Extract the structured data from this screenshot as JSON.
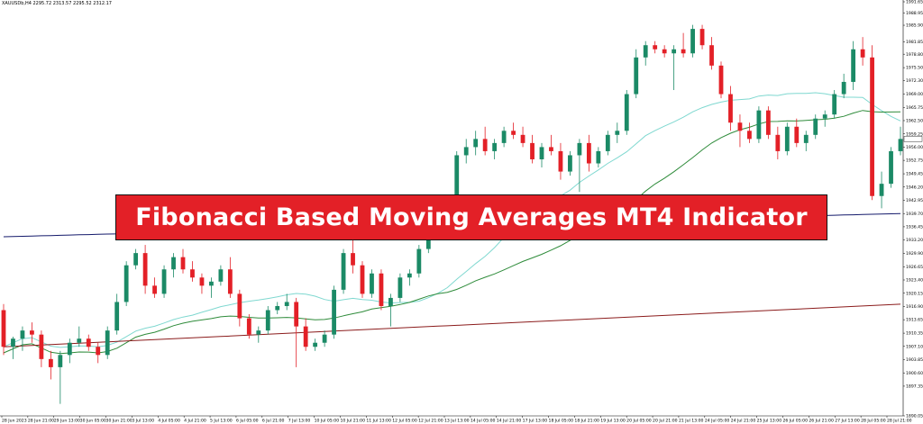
{
  "header": {
    "symbol_info": "XAUUSDb,H4  2295.72 2313.57 2295.52 2312.17"
  },
  "banner": {
    "title": "Fibonacci Based Moving Averages MT4 Indicator",
    "background": "#e32027"
  },
  "colors": {
    "bull_candle": "#1b8a66",
    "bear_candle": "#e32027",
    "ma_teal": "#7fd8d0",
    "ma_green": "#2e8b3a",
    "ma_navy": "#141a6b",
    "ma_maroon": "#8b1c1c"
  },
  "chart_data": {
    "type": "candlestick",
    "price_axis": [
      "1991.65",
      "1988.95",
      "1985.90",
      "1981.85",
      "1978.80",
      "1975.50",
      "1972.30",
      "1969.00",
      "1965.75",
      "1962.50",
      "1959.25",
      "1956.00",
      "1952.75",
      "1949.45",
      "1946.20",
      "1942.95",
      "1939.70",
      "1936.45",
      "1933.20",
      "1929.90",
      "1926.65",
      "1923.40",
      "1920.15",
      "1916.90",
      "1913.65",
      "1910.35",
      "1907.10",
      "1903.85",
      "1900.60",
      "1897.35",
      "1890.05"
    ],
    "time_axis": [
      "28 Jun 2023",
      "28 Jun 21:00",
      "29 Jun 13:00",
      "30 Jun 05:00",
      "30 Jun 21:00",
      "3 Jul 13:00",
      "4 Jul 05:00",
      "4 Jul 21:00",
      "5 Jul 13:00",
      "6 Jul 05:00",
      "6 Jul 21:00",
      "7 Jul 13:00",
      "10 Jul 05:00",
      "10 Jul 21:00",
      "11 Jul 13:00",
      "12 Jul 05:00",
      "12 Jul 21:00",
      "13 Jul 13:00",
      "14 Jul 05:00",
      "14 Jul 21:00",
      "17 Jul 13:00",
      "18 Jul 05:00",
      "18 Jul 21:00",
      "19 Jul 13:00",
      "20 Jul 05:00",
      "20 Jul 21:00",
      "21 Jul 13:00",
      "24 Jul 05:00",
      "24 Jul 21:00",
      "25 Jul 13:00",
      "26 Jul 05:00",
      "26 Jul 21:00",
      "27 Jul 13:00",
      "28 Jul 05:00",
      "28 Jul 21:00"
    ],
    "candles": [
      [
        1916,
        1917.5,
        1905,
        1907
      ],
      [
        1907,
        1909.5,
        1904,
        1909
      ],
      [
        1909,
        1912,
        1906,
        1911
      ],
      [
        1911,
        1913,
        1908,
        1910
      ],
      [
        1910,
        1911,
        1902,
        1904
      ],
      [
        1904,
        1906,
        1899,
        1902
      ],
      [
        1902,
        1906,
        1893,
        1905
      ],
      [
        1905,
        1909,
        1903,
        1908
      ],
      [
        1908,
        1912,
        1907,
        1909
      ],
      [
        1909,
        1910,
        1906,
        1907
      ],
      [
        1907,
        1908,
        1903,
        1905
      ],
      [
        1905,
        1912,
        1904,
        1911
      ],
      [
        1911,
        1920,
        1910,
        1918
      ],
      [
        1918,
        1928,
        1917,
        1927
      ],
      [
        1927,
        1931,
        1926,
        1930
      ],
      [
        1930,
        1932,
        1920,
        1922
      ],
      [
        1922,
        1924,
        1919,
        1920
      ],
      [
        1920,
        1927,
        1919,
        1926
      ],
      [
        1926,
        1930,
        1924,
        1929
      ],
      [
        1929,
        1931,
        1925,
        1926
      ],
      [
        1926,
        1928,
        1923,
        1924
      ],
      [
        1924,
        1925,
        1920,
        1922
      ],
      [
        1922,
        1924,
        1919,
        1923
      ],
      [
        1923,
        1927,
        1922,
        1926
      ],
      [
        1926,
        1929,
        1919,
        1920
      ],
      [
        1920,
        1921,
        1912,
        1914
      ],
      [
        1914,
        1915,
        1909,
        1910
      ],
      [
        1910,
        1912,
        1908,
        1911
      ],
      [
        1911,
        1917,
        1910,
        1916
      ],
      [
        1916,
        1918,
        1915,
        1917
      ],
      [
        1917,
        1920,
        1916,
        1918
      ],
      [
        1918,
        1919,
        1902,
        1912
      ],
      [
        1912,
        1914,
        1906,
        1907
      ],
      [
        1907,
        1909,
        1906,
        1908
      ],
      [
        1908,
        1911,
        1907,
        1910
      ],
      [
        1910,
        1922,
        1909,
        1921
      ],
      [
        1921,
        1931,
        1920,
        1930
      ],
      [
        1930,
        1935,
        1925,
        1927
      ],
      [
        1927,
        1928,
        1919,
        1920
      ],
      [
        1920,
        1926,
        1919,
        1925
      ],
      [
        1925,
        1926,
        1916,
        1917
      ],
      [
        1917,
        1920,
        1912,
        1919
      ],
      [
        1919,
        1925,
        1918,
        1924
      ],
      [
        1924,
        1926,
        1922,
        1925
      ],
      [
        1925,
        1932,
        1924,
        1931
      ],
      [
        1931,
        1939,
        1930,
        1938
      ],
      [
        1938,
        1941,
        1935,
        1937
      ],
      [
        1937,
        1940,
        1935,
        1939
      ],
      [
        1939,
        1955,
        1938,
        1954
      ],
      [
        1954,
        1958,
        1952,
        1956
      ],
      [
        1956,
        1960,
        1954,
        1958
      ],
      [
        1958,
        1961,
        1954,
        1955
      ],
      [
        1955,
        1958,
        1953,
        1957
      ],
      [
        1957,
        1961,
        1956,
        1960
      ],
      [
        1960,
        1962,
        1958,
        1959
      ],
      [
        1959,
        1961,
        1956,
        1957
      ],
      [
        1957,
        1959,
        1952,
        1953
      ],
      [
        1953,
        1957,
        1951,
        1956
      ],
      [
        1956,
        1959,
        1954,
        1955
      ],
      [
        1955,
        1957,
        1948,
        1950
      ],
      [
        1950,
        1955,
        1949,
        1954
      ],
      [
        1954,
        1958,
        1945,
        1957
      ],
      [
        1957,
        1959,
        1950,
        1952
      ],
      [
        1952,
        1956,
        1951,
        1955
      ],
      [
        1955,
        1960,
        1954,
        1959
      ],
      [
        1959,
        1962,
        1957,
        1960
      ],
      [
        1960,
        1970,
        1959,
        1969
      ],
      [
        1969,
        1980,
        1968,
        1978
      ],
      [
        1978,
        1982,
        1976,
        1981
      ],
      [
        1981,
        1982,
        1979,
        1980
      ],
      [
        1980,
        1981,
        1978,
        1979
      ],
      [
        1979,
        1981,
        1970,
        1980
      ],
      [
        1980,
        1984,
        1978,
        1979
      ],
      [
        1979,
        1986,
        1978,
        1985
      ],
      [
        1985,
        1986,
        1980,
        1981
      ],
      [
        1981,
        1983,
        1975,
        1976
      ],
      [
        1976,
        1977,
        1968,
        1969
      ],
      [
        1969,
        1971,
        1960,
        1962
      ],
      [
        1962,
        1964,
        1956,
        1960
      ],
      [
        1960,
        1962,
        1957,
        1958
      ],
      [
        1958,
        1966,
        1957,
        1965
      ],
      [
        1965,
        1966,
        1958,
        1959
      ],
      [
        1959,
        1961,
        1953,
        1955
      ],
      [
        1955,
        1962,
        1954,
        1961
      ],
      [
        1961,
        1963,
        1956,
        1957
      ],
      [
        1957,
        1960,
        1955,
        1959
      ],
      [
        1959,
        1964,
        1958,
        1963
      ],
      [
        1963,
        1965,
        1961,
        1964
      ],
      [
        1964,
        1970,
        1963,
        1969
      ],
      [
        1969,
        1974,
        1968,
        1972
      ],
      [
        1972,
        1982,
        1970,
        1980
      ],
      [
        1980,
        1983,
        1976,
        1978
      ],
      [
        1978,
        1981,
        1943,
        1944
      ],
      [
        1944,
        1950,
        1941,
        1947
      ],
      [
        1947,
        1956,
        1946,
        1955
      ],
      [
        1955,
        1961,
        1954,
        1958
      ]
    ]
  }
}
